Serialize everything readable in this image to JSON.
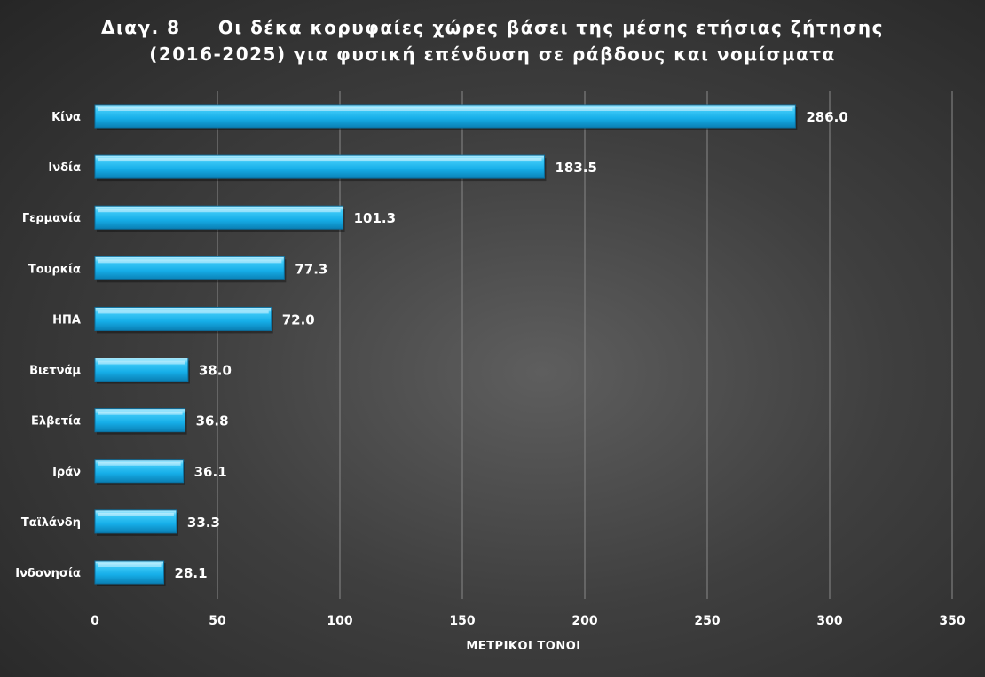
{
  "chart_data": {
    "type": "bar",
    "orientation": "horizontal",
    "title": "Διαγ. 8     Οι δέκα κορυφαίες χώρες βάσει της μέσης ετήσιας ζήτησης",
    "subtitle": "(2016-2025) για φυσική επένδυση σε ράβδους και νομίσματα",
    "xlabel": "ΜΕΤΡΙΚΟΙ ΤΟΝΟΙ",
    "ylabel": "",
    "xlim": [
      0,
      350
    ],
    "x_ticks": [
      0,
      50,
      100,
      150,
      200,
      250,
      300,
      350
    ],
    "grid": true,
    "legend": "none",
    "bar_color": "#1fb8f0",
    "categories": [
      "Κίνα",
      "Ινδία",
      "Γερμανία",
      "Τουρκία",
      "ΗΠΑ",
      "Βιετνάμ",
      "Ελβετία",
      "Ιράν",
      "Ταϊλάνδη",
      "Ινδονησία"
    ],
    "values": [
      286.0,
      183.5,
      101.3,
      77.3,
      72.0,
      38.0,
      36.8,
      36.1,
      33.3,
      28.1
    ],
    "value_labels": [
      "286.0",
      "183.5",
      "101.3",
      "77.3",
      "72.0",
      "38.0",
      "36.8",
      "36.1",
      "33.3",
      "28.1"
    ]
  }
}
